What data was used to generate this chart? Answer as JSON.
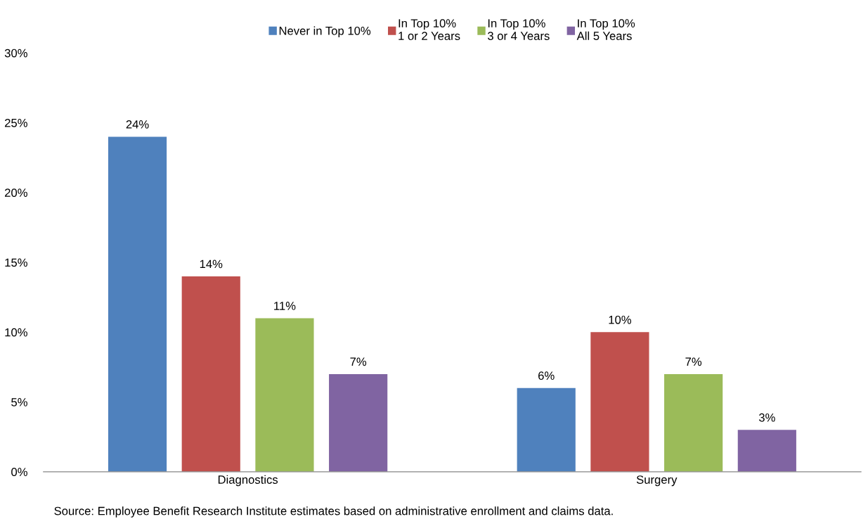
{
  "chart_data": {
    "type": "bar",
    "categories": [
      "Diagnostics",
      "Surgery"
    ],
    "series": [
      {
        "name": "Never in Top 10%",
        "color": "#4f81bd",
        "values": [
          24,
          6
        ],
        "value_labels": [
          "24%",
          "6%"
        ]
      },
      {
        "name": "In Top 10%\n1 or 2 Years",
        "color": "#c0504d",
        "values": [
          14,
          10
        ],
        "value_labels": [
          "14%",
          "10%"
        ]
      },
      {
        "name": "In Top 10%\n3 or 4 Years",
        "color": "#9bbb59",
        "values": [
          11,
          7
        ],
        "value_labels": [
          "11%",
          "7%"
        ]
      },
      {
        "name": "In Top 10%\nAll 5 Years",
        "color": "#8064a2",
        "values": [
          7,
          3
        ],
        "value_labels": [
          "7%",
          "3%"
        ]
      }
    ],
    "ylim": [
      0,
      30
    ],
    "yticks": [
      {
        "value": 0,
        "label": "0%"
      },
      {
        "value": 5,
        "label": "5%"
      },
      {
        "value": 10,
        "label": "10%"
      },
      {
        "value": 15,
        "label": "15%"
      },
      {
        "value": 20,
        "label": "20%"
      },
      {
        "value": 25,
        "label": "25%"
      },
      {
        "value": 30,
        "label": "30%"
      }
    ],
    "grid": false,
    "legend": "top",
    "annotations": [
      "Source: Employee Benefit Research Institute estimates based on administrative enrollment and claims data."
    ]
  }
}
